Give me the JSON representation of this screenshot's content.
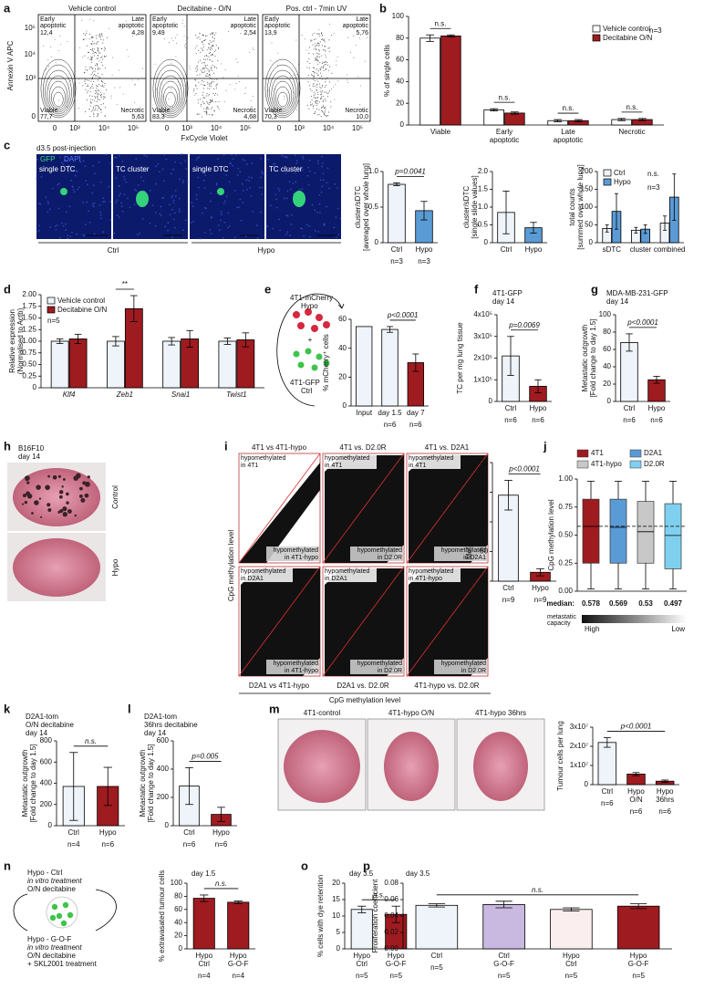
{
  "chart_data": [
    {
      "type": "bar",
      "categories": [
        [
          "Viable"
        ],
        [
          "Early",
          "apoptotic"
        ],
        [
          "Late",
          "apoptotic"
        ],
        [
          "Necrotic"
        ]
      ],
      "series": [
        {
          "name": "Vehicle control",
          "color": "#ffffff",
          "values": [
            80,
            14,
            4,
            5
          ],
          "errors": [
            3,
            1,
            1,
            1
          ]
        },
        {
          "name": "Decitabine O/N",
          "color": "#9e1b20",
          "values": [
            82,
            11,
            4,
            5
          ],
          "errors": [
            1,
            1,
            1,
            1
          ]
        }
      ],
      "ylabel": [
        "% of single cells"
      ],
      "ylim": [
        0,
        100
      ],
      "yticks": [
        0,
        20,
        40,
        60,
        80,
        100
      ],
      "group_annotations": [
        "n.s.",
        "n.s.",
        "n.s.",
        "n.s."
      ],
      "notes": [
        "n=3"
      ]
    },
    {
      "type": "bar",
      "categories": [
        "Ctrl",
        "Hypo"
      ],
      "series": [
        {
          "values": [
            0.82,
            0.45
          ],
          "errors": [
            0.02,
            0.13
          ],
          "colors": [
            "#eef4fa",
            "#5b9bd5"
          ]
        }
      ],
      "ylabel": [
        "cluster/sDTC",
        "[averaged over whole lung]"
      ],
      "ylim": [
        0,
        1
      ],
      "yticks": [
        0,
        0.5,
        {
          "value": 1,
          "label": "1.0"
        }
      ],
      "annotation": "p=0.0041",
      "n_labels": [
        "n=3",
        "n=3"
      ]
    },
    {
      "type": "bar",
      "categories": [
        "Ctrl",
        "Hypo"
      ],
      "series": [
        {
          "values": [
            0.85,
            0.42
          ],
          "errors": [
            0.6,
            0.15
          ],
          "colors": [
            "#eef4fa",
            "#5b9bd5"
          ]
        }
      ],
      "ylabel": [
        "cluster/sDTC",
        "[single slide values]"
      ],
      "ylim": [
        0,
        2
      ],
      "yticks": [
        0,
        0.5,
        {
          "value": 1,
          "label": "1.0"
        },
        1.5,
        {
          "value": 2,
          "label": "2.0"
        }
      ]
    },
    {
      "type": "bar",
      "categories": [
        "sDTC",
        "cluster",
        "combined"
      ],
      "series": [
        {
          "name": "Ctrl",
          "color": "#eef4fa",
          "values": [
            40,
            35,
            55
          ],
          "errors": [
            10,
            8,
            20
          ]
        },
        {
          "name": "Hypo",
          "color": "#5b9bd5",
          "values": [
            88,
            38,
            128
          ],
          "errors": [
            50,
            12,
            65
          ]
        }
      ],
      "ylabel": [
        "total counts",
        "[summed over whole lung]"
      ],
      "ylim": [
        0,
        200
      ],
      "yticks": [
        0,
        50,
        100,
        150,
        200
      ],
      "notes": [
        "n.s.",
        "n=3"
      ]
    },
    {
      "type": "bar",
      "categories": [
        [
          "Klf4"
        ],
        [
          "Zeb1"
        ],
        [
          "Snai1"
        ],
        [
          "Twist1"
        ]
      ],
      "italic_categories": true,
      "series": [
        {
          "name": "Vehicle control",
          "color": "#eef4fa",
          "values": [
            1.0,
            1.0,
            1.0,
            1.0
          ],
          "errors": [
            0.05,
            0.1,
            0.08,
            0.07
          ]
        },
        {
          "name": "Decitabine O/N",
          "color": "#9e1b20",
          "values": [
            1.05,
            1.7,
            1.05,
            1.03
          ],
          "errors": [
            0.1,
            0.28,
            0.18,
            0.15
          ]
        }
      ],
      "ylabel": [
        "Relative expression",
        "(Normalised to Actb)"
      ],
      "ylim": [
        0,
        2
      ],
      "yticks": [
        0,
        0.25,
        {
          "value": 0.5,
          "label": "0.50"
        },
        0.75,
        {
          "value": 1,
          "label": "1.00"
        },
        1.25,
        {
          "value": 1.5,
          "label": "1.50"
        },
        1.75,
        {
          "value": 2,
          "label": "2.00"
        }
      ],
      "group_annotations": [
        null,
        "**",
        null,
        null
      ],
      "notes": [
        "n=5"
      ]
    },
    {
      "type": "bar",
      "categories": [
        "Input",
        "day 1.5",
        "day 7"
      ],
      "series": [
        {
          "values": [
            55,
            53,
            30
          ],
          "errors": [
            0,
            2,
            6
          ],
          "colors": [
            "#eef4fa",
            "#eef4fa",
            "#9e1b20"
          ]
        }
      ],
      "ylabel": [
        "% mCherry⁺ cells"
      ],
      "ylim": [
        0,
        60
      ],
      "yticks": [
        0,
        20,
        40,
        60
      ],
      "annotation": "p<0.0001",
      "n_labels": [
        null,
        "n=6",
        "n=6"
      ]
    },
    {
      "type": "bar",
      "title": [
        "4T1-GFP",
        "day 14"
      ],
      "categories": [
        "Ctrl",
        "Hypo"
      ],
      "series": [
        {
          "values": [
            210000,
            70000
          ],
          "errors": [
            90000,
            30000
          ],
          "colors": [
            "#eef4fa",
            "#9e1b20"
          ]
        }
      ],
      "ylabel": [
        "TC per mg lung tissue"
      ],
      "ylim": [
        0,
        400000
      ],
      "yticks": [
        0,
        {
          "value": 100000,
          "label": "1x10⁵"
        },
        {
          "value": 200000,
          "label": "2x10⁵"
        },
        {
          "value": 300000,
          "label": "3x10⁵"
        },
        {
          "value": 400000,
          "label": "4x10⁵"
        }
      ],
      "annotation": "p=0.0069",
      "n_labels": [
        "n=6",
        "n=6"
      ]
    },
    {
      "type": "bar",
      "title": [
        "MDA-MB-231-GFP",
        "day 14"
      ],
      "categories": [
        "Ctrl",
        "Hypo"
      ],
      "series": [
        {
          "values": [
            68,
            25
          ],
          "errors": [
            10,
            4
          ],
          "colors": [
            "#eef4fa",
            "#9e1b20"
          ]
        }
      ],
      "ylabel": [
        "Metastatic outgrowth",
        "[Fold change to day 1.5]"
      ],
      "ylim": [
        0,
        100
      ],
      "yticks": [
        0,
        20,
        40,
        60,
        80,
        100
      ],
      "annotation": "p<0.0001",
      "n_labels": [
        "n=6",
        "n=6"
      ]
    },
    {
      "type": "bar",
      "categories": [
        "Ctrl",
        "Hypo"
      ],
      "series": [
        {
          "values": [
            145,
            15
          ],
          "errors": [
            25,
            6
          ],
          "colors": [
            "#eef4fa",
            "#9e1b20"
          ]
        }
      ],
      "ylabel": [
        "Metastatic foci per lung"
      ],
      "ylim": [
        0,
        200
      ],
      "yticks": [
        0,
        50,
        100,
        150,
        200
      ],
      "annotation": "p<0.0001",
      "n_labels": [
        "n=9",
        "n=9"
      ]
    },
    {
      "type": "box",
      "categories": [
        "4T1",
        "D2A1",
        "4T1-hypo",
        "D2.0R"
      ],
      "colors": [
        "#9e1b20",
        "#5b9bd5",
        "#c8c8c8",
        "#7fd0ef"
      ],
      "whisker_low": [
        0.02,
        0.02,
        0.02,
        0.02
      ],
      "q1": [
        0.25,
        0.25,
        0.25,
        0.2
      ],
      "median": [
        0.578,
        0.569,
        0.53,
        0.497
      ],
      "q3": [
        0.82,
        0.82,
        0.8,
        0.78
      ],
      "whisker_high": [
        0.98,
        0.98,
        0.98,
        0.98
      ],
      "reference_line": 0.578,
      "ylabel": [
        "CpG methylation level"
      ],
      "ylim": [
        0,
        1
      ],
      "yticks": [
        {
          "value": 0,
          "label": "0.00"
        },
        0.25,
        {
          "value": 0.5,
          "label": "0.50"
        },
        0.75,
        {
          "value": 1,
          "label": "1.00"
        }
      ],
      "median_label": "median:",
      "capacity_label": [
        "metastatic",
        "capacity"
      ],
      "capacity_ends": [
        "High",
        "Low"
      ]
    },
    {
      "type": "bar",
      "title": [
        "D2A1-tom",
        "O/N decitabine",
        "day 14"
      ],
      "categories": [
        "Ctrl",
        "Hypo"
      ],
      "series": [
        {
          "values": [
            370,
            370
          ],
          "errors": [
            320,
            180
          ],
          "colors": [
            "#eef4fa",
            "#9e1b20"
          ]
        }
      ],
      "ylabel": [
        "Metastatic outgrowth",
        "[Fold change to day 1.5]"
      ],
      "ylim": [
        0,
        800
      ],
      "yticks": [
        0,
        200,
        400,
        600,
        800
      ],
      "annotation": "n.s.",
      "n_labels": [
        "n=4",
        "n=6"
      ]
    },
    {
      "type": "bar",
      "title": [
        "D2A1-tom",
        "36hrs decitabine",
        "day 14"
      ],
      "categories": [
        "Ctrl",
        "Hypo"
      ],
      "series": [
        {
          "values": [
            280,
            80
          ],
          "errors": [
            130,
            50
          ],
          "colors": [
            "#eef4fa",
            "#9e1b20"
          ]
        }
      ],
      "ylabel": [
        "Metastatic outgrowth",
        "[Fold change to day 1.5]"
      ],
      "ylim": [
        0,
        600
      ],
      "yticks": [
        0,
        200,
        400,
        600
      ],
      "annotation": "p=0.005",
      "n_labels": [
        "n=6",
        "n=6"
      ]
    },
    {
      "type": "bar",
      "categories": [
        [
          "Ctrl"
        ],
        [
          "Hypo",
          "O/N"
        ],
        [
          "Hypo",
          "36hrs"
        ]
      ],
      "series": [
        {
          "values": [
            22000000,
            5500000,
            1800000
          ],
          "errors": [
            2500000,
            800000,
            600000
          ],
          "colors": [
            "#eef4fa",
            "#9e1b20",
            "#9e1b20"
          ]
        }
      ],
      "ylabel": [
        "Tumour cells per lung"
      ],
      "ylim": [
        0,
        30000000
      ],
      "yticks": [
        0,
        {
          "value": 10000000,
          "label": "1x10⁷"
        },
        {
          "value": 20000000,
          "label": "2x10⁷"
        },
        {
          "value": 30000000,
          "label": "3x10⁷"
        }
      ],
      "annotation": "p<0.0001",
      "n_labels": [
        "n=6",
        "n=6",
        "n=6"
      ]
    },
    {
      "type": "bar",
      "title": [
        "day 1.5"
      ],
      "categories": [
        [
          "Hypo",
          "Ctrl"
        ],
        [
          "Hypo",
          "G-O-F"
        ]
      ],
      "series": [
        {
          "values": [
            77,
            71
          ],
          "errors": [
            5,
            2
          ],
          "colors": [
            "#9e1b20",
            "#9e1b20"
          ]
        }
      ],
      "ylabel": [
        "% extravasated tumour cells"
      ],
      "ylim": [
        0,
        100
      ],
      "yticks": [
        0,
        20,
        40,
        60,
        80,
        100
      ],
      "annotation": "n.s.",
      "n_labels": [
        "n=4",
        "n=4"
      ]
    },
    {
      "type": "bar",
      "title": [
        "day 3.5"
      ],
      "categories": [
        [
          "Hypo",
          "Ctrl"
        ],
        [
          "Hypo",
          "G-O-F"
        ]
      ],
      "series": [
        {
          "values": [
            12,
            10.5
          ],
          "errors": [
            1,
            2.5
          ],
          "colors": [
            "#eef4fa",
            "#9e1b20"
          ]
        }
      ],
      "ylabel": [
        "% cells with dye retention"
      ],
      "ylim": [
        0,
        20
      ],
      "yticks": [
        0,
        5,
        10,
        15,
        20
      ],
      "annotation": "n.s.",
      "n_labels": [
        "n=5",
        "n=5"
      ]
    },
    {
      "type": "bar",
      "title": [
        "day 3.5"
      ],
      "categories": [
        [
          "Ctrl"
        ],
        [
          "Ctrl",
          "G-O-F"
        ],
        [
          "Hypo",
          "Ctrl"
        ],
        [
          "Hypo",
          "G-O-F"
        ]
      ],
      "series": [
        {
          "values": [
            0.053,
            0.054,
            0.048,
            0.052
          ],
          "errors": [
            0.002,
            0.004,
            0.002,
            0.003
          ],
          "colors": [
            "#eef4fa",
            "#c9b8e0",
            "#fbeeee",
            "#9e1b20"
          ]
        }
      ],
      "ylabel": [
        "Proliferation coefficient"
      ],
      "ylim": [
        0,
        0.08
      ],
      "yticks": [
        {
          "value": 0,
          "label": "0.00"
        },
        0.02,
        0.04,
        0.06,
        0.08
      ],
      "annotation": "n.s.",
      "n_labels": [
        "n=5",
        "n=5",
        "n=5",
        "n=5"
      ]
    }
  ],
  "figure": {
    "letters": [
      "a",
      "b",
      "c",
      "d",
      "e",
      "f",
      "g",
      "h",
      "i",
      "j",
      "k",
      "l",
      "m",
      "n",
      "o",
      "p"
    ],
    "a": {
      "plots": [
        {
          "title": "Vehicle control",
          "early": "12,4",
          "late": "4,28",
          "viable": "77,7",
          "necrotic": "5,63"
        },
        {
          "title": "Decitabine - O/N",
          "early": "9,49",
          "late": "2,54",
          "viable": "83,3",
          "necrotic": "4,68"
        },
        {
          "title": "Pos. ctrl - 7min UV",
          "early": "13,9",
          "late": "5,76",
          "viable": "70,3",
          "necrotic": "10,0"
        }
      ],
      "early_label": [
        "Early",
        "apoptotic"
      ],
      "late_label": [
        "Late",
        "apoptotic"
      ],
      "viable_label": "Viable",
      "necrotic_label": "Necrotic",
      "ylabel": "Annexin V APC",
      "yticks": [
        "10⁵",
        "10⁴",
        "10³",
        "0"
      ],
      "xticks": [
        "0",
        "10³",
        "10⁴",
        "10⁵"
      ],
      "xlabel": "FxCycle Violet"
    },
    "c": {
      "caption": "d3.5 post-injection",
      "stain1": "GFP",
      "stain2": "DAPI",
      "panels": [
        "single DTC",
        "TC cluster",
        "single DTC",
        "TC cluster"
      ],
      "groups": [
        "Ctrl",
        "Hypo"
      ]
    },
    "e": {
      "top": [
        "4T1-mCherry",
        "Hypo"
      ],
      "plus": "+",
      "bottom": [
        "4T1-GFP",
        "Ctrl"
      ]
    },
    "h": {
      "title": [
        "B16F10",
        "day 14"
      ],
      "photos": [
        "Control",
        "Hypo"
      ]
    },
    "i": {
      "top_titles": [
        "4T1 vs 4T1-hypo",
        "4T1 vs. D2.0R",
        "4T1 vs. D2A1"
      ],
      "bottom_titles": [
        "D2A1 vs 4T1-hypo",
        "D2A1 vs. D2.0R",
        "4T1-hypo vs. D2.0R"
      ],
      "upper_notes": [
        [
          "hypomethylated",
          "in 4T1"
        ],
        [
          "hypomethylated",
          "in 4T1"
        ],
        [
          "hypomethylated",
          "in 4T1"
        ],
        [
          "hypomethylated",
          "in D2A1"
        ],
        [
          "hypomethylated",
          "in D2A1"
        ],
        [
          "hypomethylated",
          "in 4T1-hypo"
        ]
      ],
      "lower_notes": [
        [
          "hypomethylated",
          "in 4T1-hypo"
        ],
        [
          "hypomethylated",
          "in D2.0R"
        ],
        [
          "hypomethylated",
          "in D2A1"
        ],
        [
          "hypomethylated",
          "in 4T1-hypo"
        ],
        [
          "hypomethylated",
          "in D2.0R"
        ],
        [
          "hypomethylated",
          "in D2.0R"
        ]
      ],
      "ylabel": "CpG methylation level",
      "xlabel": "CpG methylation level"
    },
    "m": {
      "photos": [
        "4T1-control",
        "4T1-hypo O/N",
        "4T1-hypo 36hrs"
      ]
    },
    "n": {
      "top": [
        "Hypo - Ctrl",
        "in vitro treatment",
        "O/N decitabine"
      ],
      "bottom": [
        "Hypo - G-O-F",
        "in vitro treatment",
        "O/N decitabine",
        "+ SKL2001 treatment"
      ]
    }
  }
}
